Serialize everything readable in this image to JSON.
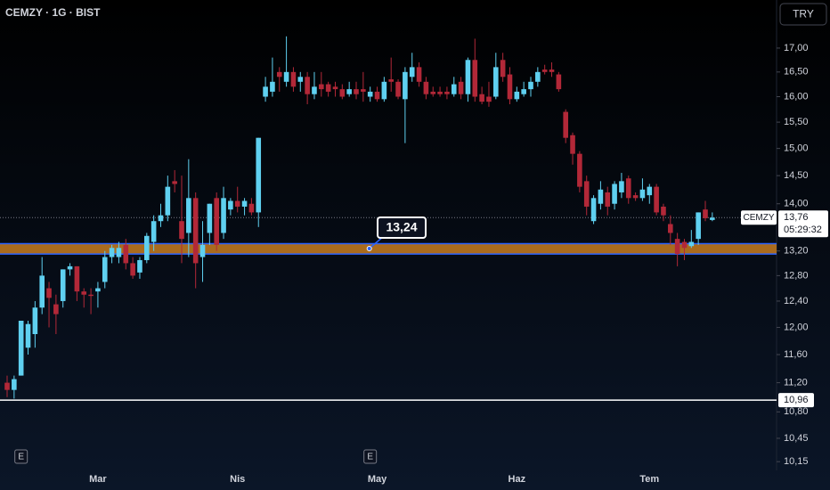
{
  "chart_data": {
    "type": "candlestick",
    "title": "CEMZY · 1G · BIST",
    "currency": "TRY",
    "log_scale": true,
    "up_color": "#5fd0f0",
    "down_color": "#b22838",
    "categories": [
      null,
      null,
      null,
      null,
      null,
      null,
      null,
      null,
      null,
      null,
      null,
      null,
      null,
      "Mar",
      null,
      null,
      null,
      null,
      null,
      null,
      null,
      null,
      null,
      null,
      null,
      null,
      null,
      null,
      null,
      null,
      null,
      null,
      null,
      "Nis",
      null,
      null,
      null,
      null,
      null,
      null,
      null,
      null,
      null,
      null,
      null,
      null,
      null,
      null,
      null,
      null,
      null,
      null,
      null,
      "May",
      null,
      null,
      null,
      null,
      null,
      null,
      null,
      null,
      null,
      null,
      null,
      null,
      null,
      null,
      null,
      null,
      null,
      null,
      null,
      "Haz",
      null,
      null,
      null,
      null,
      null,
      null,
      null,
      null,
      null,
      null,
      null,
      null,
      null,
      null,
      null,
      null,
      null,
      null,
      "Tem",
      null,
      null,
      null,
      null,
      null,
      null,
      null,
      null,
      null
    ],
    "open": [
      11.2,
      11.1,
      11.3,
      11.7,
      11.9,
      12.3,
      12.6,
      12.35,
      12.4,
      12.9,
      12.95,
      12.55,
      12.5,
      12.55,
      12.7,
      13.1,
      13.1,
      13.3,
      13.0,
      12.85,
      13.05,
      13.35,
      13.7,
      13.8,
      14.4,
      13.7,
      13.5,
      14.1,
      13.1,
      13.5,
      14.1,
      13.5,
      13.9,
      14.05,
      13.95,
      14.0,
      13.85,
      16.0,
      16.1,
      16.5,
      16.3,
      16.5,
      16.3,
      16.4,
      16.05,
      16.25,
      16.25,
      16.2,
      16.15,
      16.05,
      16.15,
      16.15,
      16.0,
      16.1,
      15.95,
      16.35,
      16.3,
      15.95,
      16.4,
      16.6,
      16.3,
      16.1,
      16.1,
      16.1,
      16.05,
      16.3,
      16.05,
      16.75,
      16.05,
      16.0,
      16.0,
      16.75,
      16.45,
      15.95,
      16.05,
      16.15,
      16.3,
      16.55,
      16.55,
      16.45,
      15.7,
      15.25,
      14.9,
      14.4,
      13.7,
      14.0,
      14.2,
      14.0,
      14.2,
      14.45,
      14.15,
      14.1,
      14.15,
      14.3,
      13.95,
      13.65,
      13.4,
      13.35,
      13.28,
      13.4,
      13.9,
      13.72
    ],
    "high": [
      11.3,
      11.3,
      12.1,
      12.1,
      12.4,
      13.1,
      12.7,
      12.5,
      12.9,
      13.0,
      12.95,
      12.6,
      12.6,
      12.7,
      13.2,
      13.3,
      13.35,
      13.4,
      13.1,
      13.1,
      13.5,
      13.8,
      14.0,
      14.5,
      14.6,
      14.5,
      14.8,
      14.2,
      13.7,
      14.0,
      14.2,
      14.3,
      14.1,
      14.3,
      14.1,
      14.1,
      15.2,
      16.4,
      16.8,
      16.6,
      17.25,
      16.6,
      16.5,
      16.5,
      16.5,
      16.5,
      16.3,
      16.3,
      16.25,
      16.3,
      16.3,
      16.5,
      16.2,
      16.2,
      16.4,
      16.8,
      16.35,
      16.6,
      16.9,
      16.7,
      16.4,
      16.2,
      16.2,
      16.2,
      16.4,
      16.4,
      16.8,
      17.2,
      16.2,
      16.3,
      16.9,
      16.9,
      16.6,
      16.2,
      16.3,
      16.4,
      16.6,
      16.65,
      16.7,
      16.5,
      15.75,
      15.3,
      14.95,
      14.5,
      14.15,
      14.4,
      14.3,
      14.4,
      14.55,
      14.5,
      14.2,
      14.45,
      14.35,
      14.35,
      14.0,
      13.8,
      13.5,
      13.4,
      13.55,
      13.85,
      14.05,
      13.85
    ],
    "low": [
      11.0,
      10.98,
      11.3,
      11.6,
      11.7,
      12.2,
      12.0,
      11.9,
      12.3,
      12.8,
      12.4,
      12.3,
      12.2,
      12.3,
      12.6,
      13.0,
      13.0,
      12.9,
      12.75,
      12.75,
      13.0,
      13.2,
      13.6,
      13.7,
      14.2,
      13.0,
      13.1,
      12.6,
      12.7,
      13.3,
      13.2,
      13.4,
      13.8,
      13.85,
      13.8,
      13.8,
      13.6,
      15.9,
      16.0,
      16.1,
      16.2,
      16.1,
      16.1,
      15.85,
      15.95,
      16.0,
      16.0,
      16.0,
      15.95,
      16.0,
      15.95,
      15.9,
      15.9,
      15.9,
      15.9,
      16.1,
      15.95,
      15.1,
      16.3,
      16.2,
      15.95,
      16.0,
      16.0,
      15.95,
      16.0,
      15.95,
      15.9,
      15.9,
      15.85,
      15.8,
      15.95,
      16.3,
      15.85,
      15.9,
      16.0,
      16.0,
      16.2,
      16.45,
      16.4,
      16.1,
      15.1,
      14.7,
      14.2,
      13.8,
      13.65,
      13.9,
      13.8,
      13.9,
      14.1,
      14.0,
      14.05,
      14.05,
      14.0,
      13.8,
      13.7,
      13.3,
      12.95,
      13.05,
      13.25,
      13.3,
      13.7,
      13.7
    ],
    "close": [
      11.1,
      11.25,
      12.1,
      12.05,
      12.3,
      12.8,
      12.45,
      12.2,
      12.9,
      12.95,
      12.55,
      12.5,
      12.48,
      12.6,
      13.1,
      13.25,
      13.25,
      13.0,
      12.8,
      13.05,
      13.45,
      13.7,
      13.8,
      14.3,
      14.35,
      13.4,
      14.1,
      13.0,
      13.3,
      14.0,
      13.3,
      14.1,
      14.05,
      13.95,
      14.05,
      13.85,
      15.2,
      16.2,
      16.3,
      16.4,
      16.5,
      16.2,
      16.4,
      16.05,
      16.2,
      16.15,
      16.1,
      16.15,
      16.0,
      16.15,
      16.05,
      16.1,
      16.1,
      15.95,
      16.3,
      16.3,
      16.0,
      16.5,
      16.6,
      16.3,
      16.05,
      16.05,
      16.05,
      16.05,
      16.25,
      16.05,
      16.75,
      16.0,
      15.9,
      15.9,
      16.6,
      16.4,
      15.95,
      16.1,
      16.15,
      16.3,
      16.5,
      16.5,
      16.5,
      16.15,
      15.2,
      14.9,
      14.3,
      13.95,
      14.1,
      14.25,
      13.95,
      14.35,
      14.4,
      14.1,
      14.1,
      14.25,
      14.3,
      13.85,
      13.8,
      13.5,
      13.15,
      13.25,
      13.35,
      13.85,
      13.75,
      13.76
    ],
    "ylim": [
      10.04,
      18.05
    ],
    "yticks": [
      {
        "value": 10.15,
        "label": "10,15"
      },
      {
        "value": 10.45,
        "label": "10,45"
      },
      {
        "value": 10.8,
        "label": "10,80"
      },
      {
        "value": 11.2,
        "label": "11,20"
      },
      {
        "value": 11.6,
        "label": "11,60"
      },
      {
        "value": 12,
        "label": "12,00"
      },
      {
        "value": 12.4,
        "label": "12,40"
      },
      {
        "value": 12.8,
        "label": "12,80"
      },
      {
        "value": 13.2,
        "label": "13,20"
      },
      {
        "value": 14,
        "label": "14,00"
      },
      {
        "value": 14.5,
        "label": "14,50"
      },
      {
        "value": 15,
        "label": "15,00"
      },
      {
        "value": 15.5,
        "label": "15,50"
      },
      {
        "value": 16,
        "label": "16,00"
      },
      {
        "value": 16.5,
        "label": "16,50"
      },
      {
        "value": 17,
        "label": "17,00"
      }
    ],
    "zone": {
      "low": 13.15,
      "high": 13.32,
      "color": "#c87d1e"
    },
    "callout": {
      "value": 13.24,
      "label": "13,24"
    },
    "hline": {
      "value": 10.96,
      "label": "10,96"
    },
    "last_price": {
      "name": "CEMZY",
      "value": 13.76,
      "label": "13,76",
      "countdown": "05:29:32"
    },
    "events": [
      "E",
      "E"
    ]
  }
}
